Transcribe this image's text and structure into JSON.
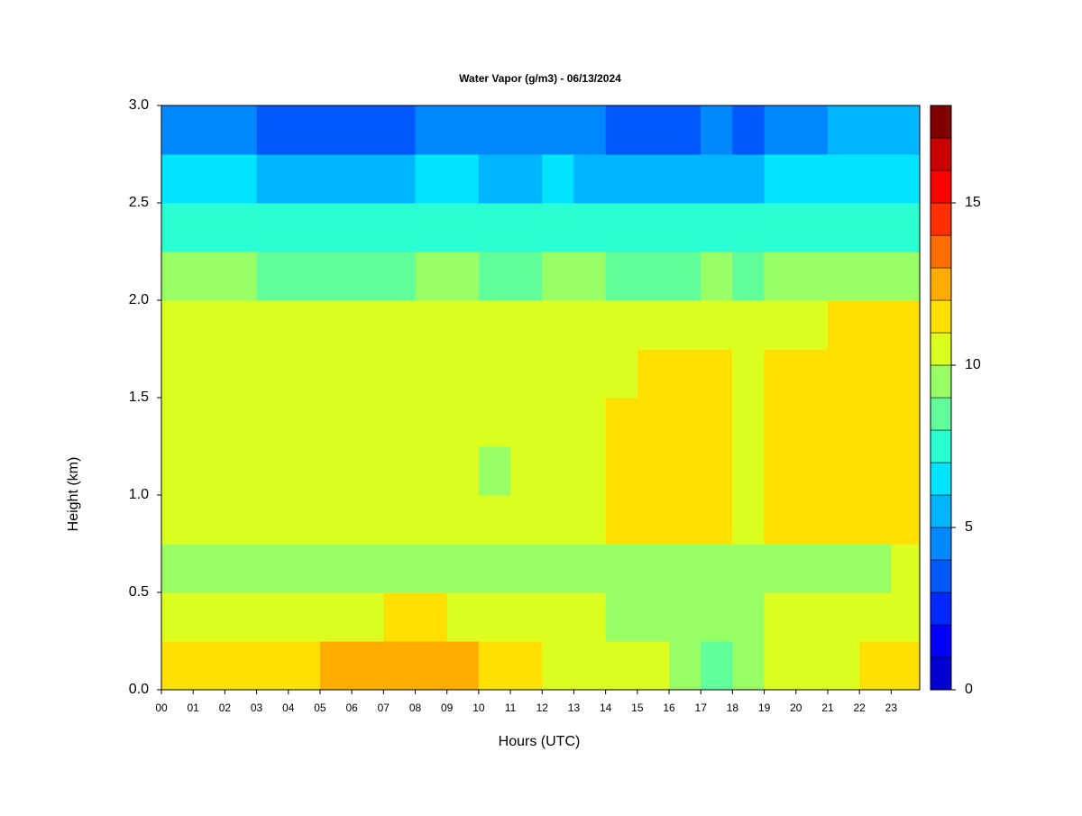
{
  "chart_data": {
    "type": "heatmap",
    "title": "Water Vapor (g/m3) - 06/13/2024",
    "x_label": "Hours (UTC)",
    "y_label": "Height (km)",
    "x": [
      0,
      1,
      2,
      3,
      4,
      5,
      6,
      7,
      8,
      9,
      10,
      11,
      12,
      13,
      14,
      15,
      16,
      17,
      18,
      19,
      20,
      21,
      22,
      23
    ],
    "y": [
      0,
      0.25,
      0.5,
      0.75,
      1,
      1.25,
      1.5,
      1.75,
      2,
      2.25,
      2.5,
      2.75
    ],
    "z": [
      [
        11.5,
        11.5,
        11.5,
        11.5,
        11.5,
        12.3,
        12.3,
        12.3,
        12.3,
        12.3,
        11.8,
        11.5,
        10.5,
        10.5,
        10.5,
        10.5,
        9.5,
        8.7,
        9.5,
        10.5,
        10.5,
        10.5,
        11.3,
        11.8
      ],
      [
        10.5,
        10.5,
        10.5,
        10.5,
        10.5,
        10.5,
        10.8,
        11.2,
        11.2,
        10.8,
        10.5,
        10.5,
        10.5,
        10.5,
        9.8,
        9.8,
        9.8,
        9.5,
        9.5,
        10.3,
        10.3,
        10,
        10.5,
        10.5
      ],
      [
        9.6,
        9.6,
        9.6,
        9.6,
        9.6,
        9.6,
        9.6,
        9.6,
        9.6,
        9.6,
        9.6,
        9.6,
        9.6,
        9.6,
        9.6,
        9.6,
        9.6,
        9.6,
        9.6,
        9.6,
        9.6,
        9.6,
        9.6,
        10.2
      ],
      [
        10.5,
        10.5,
        10.5,
        10.5,
        10.5,
        10.5,
        10.5,
        10.5,
        10.5,
        10.5,
        10.2,
        10.5,
        10.5,
        10.5,
        11.4,
        11.4,
        11.4,
        11.4,
        10.5,
        11.3,
        11.4,
        11.4,
        11.4,
        11.4
      ],
      [
        10.5,
        10.5,
        10.5,
        10.5,
        10.5,
        10.5,
        10.5,
        10.5,
        10.5,
        10.5,
        9.9,
        10.5,
        10.5,
        10.5,
        11.4,
        11.4,
        11.4,
        11.4,
        10.5,
        11.3,
        11.4,
        11.4,
        11.4,
        11.4
      ],
      [
        10.5,
        10.5,
        10.5,
        10.5,
        10.5,
        10.5,
        10.5,
        10.5,
        10.5,
        10.5,
        10,
        10.5,
        10.5,
        10.5,
        11.3,
        11.4,
        11.4,
        11.4,
        10.5,
        11.3,
        11.4,
        11.4,
        11.4,
        11.4
      ],
      [
        10.6,
        10.6,
        10.5,
        10.5,
        10.5,
        10.5,
        10.5,
        10.5,
        10.5,
        10.5,
        10.2,
        10.5,
        10.5,
        10.5,
        10.8,
        11.3,
        11.4,
        11.4,
        10.5,
        11.3,
        11.4,
        11.4,
        11.4,
        11.4
      ],
      [
        10.3,
        10.3,
        10.2,
        10.1,
        10,
        10,
        10,
        10.1,
        10.2,
        10.2,
        10.1,
        10.2,
        10.3,
        10.3,
        10.5,
        10.6,
        10.6,
        10.8,
        10.4,
        10.8,
        10.9,
        11,
        11,
        11
      ],
      [
        9.2,
        9.2,
        9,
        8.8,
        8.6,
        8.6,
        8.6,
        8.8,
        9,
        9,
        8.9,
        8.9,
        9,
        9,
        8.9,
        8.8,
        8.8,
        9,
        8.8,
        9.1,
        9.3,
        9.4,
        9.4,
        9.4
      ],
      [
        7.6,
        7.6,
        7.4,
        7.2,
        7.1,
        7.1,
        7.1,
        7.2,
        7.5,
        7.5,
        7.3,
        7.3,
        7.4,
        7.4,
        7.2,
        7.1,
        7.1,
        7.3,
        7,
        7.5,
        7.7,
        7.8,
        7.8,
        7.8
      ],
      [
        6.3,
        6.2,
        6,
        5.6,
        5.5,
        5.4,
        5.4,
        5.6,
        6,
        6,
        5.8,
        5.8,
        6,
        5.8,
        5.6,
        5.5,
        5.5,
        5.7,
        5.4,
        6,
        6.3,
        6.4,
        6.4,
        6.4
      ],
      [
        4.6,
        4.5,
        4.3,
        3.8,
        3.6,
        3.5,
        3.5,
        3.7,
        4.3,
        4.3,
        4,
        4,
        4.2,
        4,
        3.7,
        3.6,
        3.6,
        4,
        3.7,
        4.4,
        4.8,
        5,
        5,
        5
      ]
    ],
    "xlim": [
      0,
      23.9
    ],
    "ylim": [
      0,
      3
    ],
    "xticks": [
      {
        "value": 0,
        "label": "00"
      },
      {
        "value": 1,
        "label": "01"
      },
      {
        "value": 2,
        "label": "02"
      },
      {
        "value": 3,
        "label": "03"
      },
      {
        "value": 4,
        "label": "04"
      },
      {
        "value": 5,
        "label": "05"
      },
      {
        "value": 6,
        "label": "06"
      },
      {
        "value": 7,
        "label": "07"
      },
      {
        "value": 8,
        "label": "08"
      },
      {
        "value": 9,
        "label": "09"
      },
      10,
      11,
      12,
      13,
      14,
      15,
      16,
      17,
      18,
      19,
      20,
      21,
      22,
      23
    ],
    "yticks": [
      {
        "value": 0,
        "label": "0.0"
      },
      0.5,
      {
        "value": 1,
        "label": "1.0"
      },
      1.5,
      {
        "value": 2,
        "label": "2.0"
      },
      2.5,
      {
        "value": 3,
        "label": "3.0"
      }
    ],
    "zlim": [
      0,
      18
    ],
    "zticks": [
      0,
      5,
      10,
      15
    ],
    "colors": [
      "#00007f",
      "#0000a8",
      "#0000d2",
      "#0000ff",
      "#0028ff",
      "#0058ff",
      "#0088ff",
      "#00b4ff",
      "#00e4ff",
      "#2affd4",
      "#60ff9c",
      "#98ff64",
      "#dcff20",
      "#ffe000",
      "#ffac00",
      "#ff6c00",
      "#ff3000",
      "#ff0000",
      "#c80000",
      "#800000"
    ]
  }
}
